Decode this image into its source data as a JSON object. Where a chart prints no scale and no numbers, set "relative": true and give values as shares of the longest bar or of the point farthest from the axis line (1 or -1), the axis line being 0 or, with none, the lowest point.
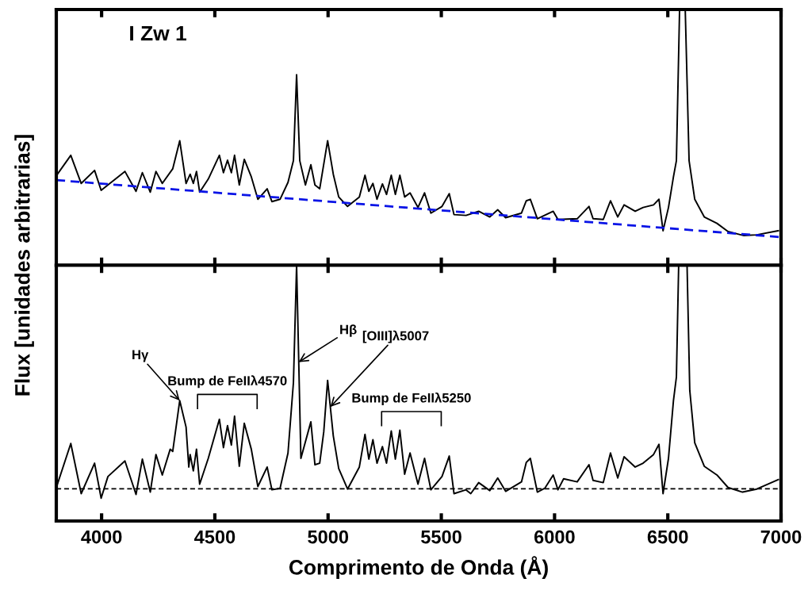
{
  "chart_data": [
    {
      "type": "line",
      "title": "I Zw 1",
      "ylabel": "Flux [unidades arbitrarias]",
      "relative": true,
      "xlim": [
        3800,
        7000
      ],
      "xticks": [
        4000,
        4500,
        5000,
        5500,
        6000,
        6500,
        7000
      ],
      "tick_labels": false,
      "series": [
        {
          "color": "#000000",
          "line_style": "solid",
          "x": [
            3800,
            3805,
            3864,
            3910,
            3969,
            3998,
            4103,
            4152,
            4180,
            4215,
            4240,
            4268,
            4314,
            4345,
            4373,
            4391,
            4405,
            4419,
            4433,
            4471,
            4520,
            4538,
            4556,
            4573,
            4587,
            4608,
            4630,
            4661,
            4690,
            4731,
            4752,
            4788,
            4823,
            4847,
            4861,
            4875,
            4900,
            4924,
            4942,
            4963,
            4998,
            5023,
            5047,
            5086,
            5138,
            5163,
            5180,
            5198,
            5216,
            5240,
            5258,
            5279,
            5297,
            5317,
            5338,
            5362,
            5397,
            5426,
            5454,
            5503,
            5535,
            5556,
            5609,
            5665,
            5714,
            5749,
            5784,
            5854,
            5875,
            5893,
            5924,
            5994,
            6015,
            6100,
            6152,
            6170,
            6215,
            6247,
            6279,
            6307,
            6356,
            6391,
            6437,
            6461,
            6479,
            6503,
            6525,
            6538,
            6552,
            6577,
            6594,
            6619,
            6661,
            6717,
            6766,
            6836,
            6893,
            6988
          ],
          "values": [
            0.35,
            0.356,
            0.43,
            0.32,
            0.371,
            0.293,
            0.367,
            0.289,
            0.362,
            0.286,
            0.367,
            0.32,
            0.377,
            0.487,
            0.32,
            0.356,
            0.32,
            0.367,
            0.286,
            0.337,
            0.43,
            0.362,
            0.411,
            0.362,
            0.43,
            0.314,
            0.414,
            0.346,
            0.258,
            0.299,
            0.249,
            0.258,
            0.324,
            0.409,
            0.745,
            0.409,
            0.314,
            0.393,
            0.314,
            0.299,
            0.487,
            0.356,
            0.267,
            0.23,
            0.267,
            0.352,
            0.289,
            0.32,
            0.258,
            0.318,
            0.277,
            0.352,
            0.277,
            0.352,
            0.267,
            0.283,
            0.226,
            0.283,
            0.204,
            0.23,
            0.28,
            0.198,
            0.195,
            0.211,
            0.189,
            0.217,
            0.186,
            0.204,
            0.252,
            0.258,
            0.182,
            0.211,
            0.179,
            0.182,
            0.23,
            0.182,
            0.179,
            0.252,
            0.189,
            0.236,
            0.211,
            0.226,
            0.236,
            0.258,
            0.135,
            0.226,
            0.346,
            0.409,
            1.0,
            1.0,
            0.409,
            0.258,
            0.189,
            0.164,
            0.132,
            0.116,
            0.119,
            0.135
          ]
        },
        {
          "color": "#0a14e6",
          "line_style": "dashed",
          "x": [
            3800,
            7000
          ],
          "values": [
            0.333,
            0.11
          ]
        }
      ]
    },
    {
      "type": "line",
      "xlabel": "Comprimento de Onda (Å)",
      "relative": true,
      "xlim": [
        3800,
        7000
      ],
      "xticks": [
        4000,
        4500,
        5000,
        5500,
        6000,
        6500,
        7000
      ],
      "tick_labels": "x",
      "ref_lines": [
        {
          "axis": "y",
          "value": 0.126,
          "color": "#000000",
          "line_style": "dashed"
        }
      ],
      "annotations": [
        {
          "text": "Hγ",
          "x": 4345,
          "y": 0.471
        },
        {
          "text": "Hβ",
          "x": 4870,
          "y": 0.621
        },
        {
          "text": "[OIII]λ5007",
          "x": 5010,
          "y": 0.446
        },
        "Bump de FeIIλ4570",
        "Bump de FeIIλ5250"
      ],
      "series": [
        {
          "color": "#000000",
          "line_style": "solid",
          "x": [
            3805,
            3864,
            3910,
            3969,
            3998,
            4028,
            4103,
            4152,
            4180,
            4215,
            4240,
            4268,
            4303,
            4314,
            4345,
            4373,
            4385,
            4391,
            4405,
            4419,
            4433,
            4471,
            4520,
            4538,
            4556,
            4573,
            4587,
            4608,
            4630,
            4661,
            4690,
            4731,
            4752,
            4788,
            4823,
            4847,
            4861,
            4880,
            4924,
            4942,
            4963,
            4981,
            4998,
            5023,
            5047,
            5086,
            5138,
            5163,
            5180,
            5198,
            5216,
            5240,
            5258,
            5279,
            5297,
            5317,
            5338,
            5362,
            5397,
            5426,
            5454,
            5503,
            5535,
            5556,
            5609,
            5630,
            5665,
            5714,
            5749,
            5784,
            5854,
            5875,
            5893,
            5924,
            5957,
            5994,
            6015,
            6040,
            6100,
            6152,
            6170,
            6215,
            6247,
            6279,
            6307,
            6356,
            6391,
            6437,
            6461,
            6479,
            6503,
            6525,
            6538,
            6548,
            6585,
            6597,
            6619,
            6661,
            6717,
            6766,
            6830,
            6893,
            6988
          ],
          "values": [
            0.144,
            0.303,
            0.107,
            0.226,
            0.089,
            0.174,
            0.235,
            0.104,
            0.242,
            0.113,
            0.26,
            0.18,
            0.281,
            0.272,
            0.471,
            0.367,
            0.211,
            0.26,
            0.196,
            0.281,
            0.144,
            0.245,
            0.398,
            0.287,
            0.373,
            0.297,
            0.41,
            0.214,
            0.382,
            0.281,
            0.135,
            0.211,
            0.122,
            0.128,
            0.266,
            0.541,
            1.0,
            0.245,
            0.388,
            0.22,
            0.226,
            0.349,
            0.55,
            0.333,
            0.205,
            0.125,
            0.211,
            0.339,
            0.242,
            0.318,
            0.226,
            0.291,
            0.226,
            0.352,
            0.242,
            0.355,
            0.183,
            0.266,
            0.144,
            0.245,
            0.122,
            0.174,
            0.254,
            0.107,
            0.122,
            0.107,
            0.15,
            0.119,
            0.168,
            0.116,
            0.153,
            0.229,
            0.245,
            0.113,
            0.128,
            0.18,
            0.122,
            0.165,
            0.153,
            0.22,
            0.159,
            0.15,
            0.266,
            0.168,
            0.251,
            0.211,
            0.226,
            0.26,
            0.3,
            0.107,
            0.245,
            0.471,
            0.563,
            1.0,
            1.0,
            0.511,
            0.306,
            0.214,
            0.18,
            0.131,
            0.113,
            0.125,
            0.162
          ]
        }
      ]
    }
  ]
}
